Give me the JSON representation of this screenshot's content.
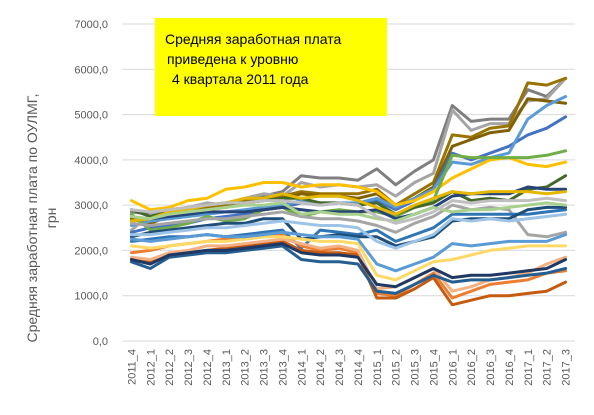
{
  "chart_data": {
    "type": "line",
    "title": "",
    "ylabel_line1": "Средняя заработная плата по ОУЛМГ,",
    "ylabel_line2": "грн",
    "ylim": [
      0,
      7000
    ],
    "yticks": [
      "0,0",
      "1000,0",
      "2000,0",
      "3000,0",
      "4000,0",
      "5000,0",
      "6000,0",
      "7000,0"
    ],
    "grid": true,
    "legend": "none",
    "annotation": {
      "lines": [
        "Средняя заработная плата",
        "приведена  к уровню",
        "4 квартала 2011 года"
      ],
      "color": "#ffff00"
    },
    "categories": [
      "2011_4",
      "2012_1",
      "2012_2",
      "2012_3",
      "2012_4",
      "2013_1",
      "2013_2",
      "2013_3",
      "2013_4",
      "2014_1",
      "2014_2",
      "2014_3",
      "2014_4",
      "2015_1",
      "2015_2",
      "2015_3",
      "2015_4",
      "2016_1",
      "2016_2",
      "2016_3",
      "2016_4",
      "2017_1",
      "2017_2",
      "2017_3"
    ],
    "series": [
      {
        "color": "#7f7f7f",
        "values": [
          2850,
          2800,
          2900,
          2950,
          3000,
          3050,
          3100,
          3200,
          3300,
          3650,
          3600,
          3600,
          3550,
          3800,
          3450,
          3750,
          4000,
          5200,
          4850,
          4900,
          4900,
          5550,
          5400,
          5800
        ]
      },
      {
        "color": "#a5a5a5",
        "values": [
          2450,
          2800,
          2850,
          2950,
          3050,
          3000,
          3150,
          3250,
          3200,
          3500,
          3400,
          3450,
          3400,
          3450,
          3200,
          3500,
          3700,
          5100,
          4650,
          4800,
          4800,
          5300,
          5350,
          5800
        ]
      },
      {
        "color": "#997300",
        "values": [
          2750,
          2650,
          2800,
          2900,
          2950,
          3000,
          3100,
          3150,
          3200,
          3300,
          3250,
          3250,
          3250,
          3350,
          3000,
          3250,
          3500,
          4550,
          4500,
          4700,
          4750,
          5700,
          5650,
          5800
        ]
      },
      {
        "color": "#806000",
        "values": [
          2700,
          2600,
          2750,
          2850,
          2900,
          2950,
          3050,
          3100,
          3150,
          3250,
          3200,
          3200,
          3150,
          3250,
          2950,
          3150,
          3400,
          4300,
          4450,
          4600,
          4650,
          5350,
          5300,
          5250
        ]
      },
      {
        "color": "#4472c4",
        "values": [
          2400,
          2500,
          2550,
          2600,
          2700,
          2750,
          2800,
          2900,
          2950,
          3050,
          3000,
          3050,
          3000,
          3100,
          2900,
          3100,
          3350,
          4150,
          4000,
          4150,
          4300,
          4550,
          4700,
          4950
        ]
      },
      {
        "color": "#5b9bd5",
        "values": [
          2550,
          2650,
          2700,
          2750,
          2800,
          2850,
          2900,
          2950,
          3000,
          3100,
          3050,
          3050,
          3050,
          3150,
          2950,
          3150,
          3350,
          3950,
          3900,
          4050,
          4150,
          4900,
          5200,
          5400
        ]
      },
      {
        "color": "#ffc000",
        "values": [
          3100,
          2900,
          2950,
          3100,
          3150,
          3350,
          3400,
          3500,
          3500,
          3400,
          3450,
          3450,
          3400,
          3300,
          3000,
          3100,
          3300,
          3600,
          3800,
          4000,
          4050,
          3900,
          3850,
          3950
        ]
      },
      {
        "color": "#70ad47",
        "values": [
          2800,
          2450,
          2500,
          2600,
          2750,
          2650,
          2700,
          2900,
          2950,
          2750,
          2850,
          2900,
          2850,
          2850,
          2750,
          2950,
          3100,
          4100,
          4050,
          4050,
          4050,
          4050,
          4100,
          4200
        ]
      },
      {
        "color": "#43682b",
        "values": [
          2900,
          2750,
          2850,
          2900,
          3000,
          3050,
          3050,
          3100,
          3150,
          3150,
          3050,
          3050,
          3000,
          3050,
          2800,
          2950,
          3050,
          3300,
          3100,
          3150,
          3100,
          3350,
          3400,
          3650
        ]
      },
      {
        "color": "#264478",
        "values": [
          2650,
          2700,
          2750,
          2800,
          2850,
          2850,
          2850,
          2900,
          2950,
          2900,
          2850,
          2850,
          2850,
          2900,
          2700,
          2800,
          2950,
          3200,
          3250,
          3250,
          3250,
          3400,
          3350,
          3350
        ]
      },
      {
        "color": "#a5a5a5",
        "values": [
          2600,
          2550,
          2600,
          2650,
          2700,
          2700,
          2750,
          2800,
          2850,
          2750,
          2700,
          2700,
          2650,
          2550,
          2400,
          2600,
          2750,
          3000,
          2900,
          2950,
          2900,
          2350,
          2300,
          2400
        ]
      },
      {
        "color": "#e5b700",
        "values": [
          2650,
          2700,
          2850,
          2900,
          3000,
          3050,
          3150,
          3150,
          3250,
          3150,
          3200,
          3200,
          3100,
          2950,
          2800,
          3000,
          3150,
          3300,
          3250,
          3300,
          3300,
          3300,
          3250,
          3300
        ]
      },
      {
        "color": "#2e75b6",
        "values": [
          2200,
          2250,
          2300,
          2300,
          2350,
          2300,
          2350,
          2400,
          2450,
          2050,
          2450,
          2400,
          2350,
          2450,
          2200,
          2350,
          2500,
          2800,
          2800,
          2800,
          2800,
          2800,
          2850,
          2900
        ]
      },
      {
        "color": "#1f4e79",
        "values": [
          2300,
          2400,
          2450,
          2500,
          2550,
          2600,
          2600,
          2700,
          2700,
          2250,
          2300,
          2350,
          2300,
          2300,
          2100,
          2200,
          2300,
          2650,
          2700,
          2700,
          2700,
          2900,
          2950,
          2950
        ]
      },
      {
        "color": "#9dc3e6",
        "values": [
          2350,
          2350,
          2400,
          2450,
          2500,
          2500,
          2550,
          2600,
          2650,
          2600,
          2550,
          2550,
          2500,
          2200,
          2050,
          2200,
          2350,
          2700,
          2650,
          2700,
          2650,
          2700,
          2750,
          2800
        ]
      },
      {
        "color": "#ed7d31",
        "values": [
          1950,
          2000,
          2100,
          2150,
          2200,
          2250,
          2250,
          2300,
          2350,
          2100,
          2000,
          2050,
          1950,
          1050,
          1000,
          1250,
          1500,
          950,
          1100,
          1250,
          1300,
          1350,
          1500,
          1550
        ]
      },
      {
        "color": "#c55a11",
        "values": [
          1800,
          1750,
          1900,
          1950,
          2000,
          2050,
          2100,
          2150,
          2200,
          2000,
          1950,
          1950,
          1900,
          950,
          950,
          1150,
          1400,
          800,
          900,
          1000,
          1000,
          1050,
          1100,
          1300
        ]
      },
      {
        "color": "#f4b183",
        "values": [
          1850,
          1800,
          1950,
          2000,
          2100,
          2100,
          2150,
          2200,
          2250,
          2150,
          2050,
          2100,
          2000,
          1150,
          1200,
          1400,
          1600,
          1100,
          1200,
          1350,
          1400,
          1500,
          1700,
          1850
        ]
      },
      {
        "color": "#255e91",
        "values": [
          1750,
          1600,
          1850,
          1900,
          1950,
          1950,
          2000,
          2050,
          2100,
          1800,
          1750,
          1750,
          1700,
          1100,
          1050,
          1250,
          1450,
          1300,
          1350,
          1350,
          1400,
          1450,
          1500,
          1600
        ]
      },
      {
        "color": "#203864",
        "values": [
          1800,
          1700,
          1900,
          1950,
          2000,
          2000,
          2050,
          2100,
          2150,
          1950,
          1900,
          1900,
          1850,
          1250,
          1200,
          1400,
          1600,
          1400,
          1450,
          1450,
          1500,
          1550,
          1600,
          1800
        ]
      },
      {
        "color": "#ffd966",
        "values": [
          2100,
          2050,
          2100,
          2150,
          2200,
          2200,
          2250,
          2300,
          2300,
          2250,
          2200,
          2200,
          2150,
          1450,
          1350,
          1550,
          1750,
          1800,
          1900,
          2000,
          2050,
          2100,
          2100,
          2100
        ]
      },
      {
        "color": "#5b9bd5",
        "values": [
          2250,
          2200,
          2250,
          2300,
          2350,
          2300,
          2300,
          2350,
          2400,
          2350,
          2300,
          2300,
          2250,
          1700,
          1550,
          1700,
          1850,
          2150,
          2100,
          2150,
          2200,
          2200,
          2200,
          2350
        ]
      },
      {
        "color": "#a9d18e",
        "values": [
          2750,
          2700,
          2800,
          2850,
          2900,
          2950,
          3000,
          3000,
          3050,
          2800,
          2850,
          2800,
          2800,
          2700,
          2650,
          2800,
          2950,
          2850,
          2900,
          2900,
          2950,
          3000,
          3050,
          3000
        ]
      },
      {
        "color": "#bfbfbf",
        "values": [
          2900,
          2850,
          2900,
          2950,
          3000,
          3050,
          3050,
          3100,
          3100,
          3050,
          3000,
          3050,
          3000,
          2750,
          2600,
          2700,
          2850,
          3100,
          3050,
          3100,
          3100,
          3100,
          3150,
          3100
        ]
      }
    ]
  }
}
